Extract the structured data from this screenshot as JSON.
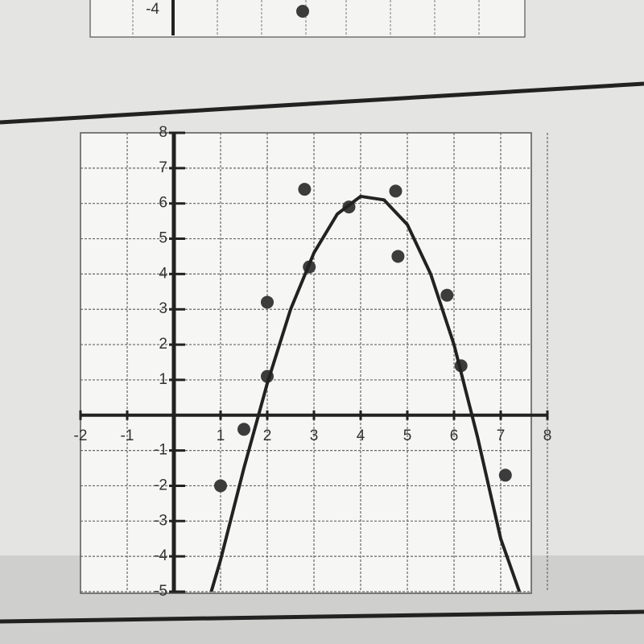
{
  "chart_data": {
    "type": "scatter",
    "xlim": [
      -2,
      8
    ],
    "ylim": [
      -5,
      8
    ],
    "xticks": [
      -2,
      -1,
      1,
      2,
      3,
      4,
      5,
      6,
      7,
      8
    ],
    "yticks": [
      -5,
      -4,
      -3,
      -2,
      -1,
      1,
      2,
      3,
      4,
      5,
      6,
      7,
      8
    ],
    "grid": true,
    "series": [
      {
        "type": "scatter",
        "color": "#3c3c3c",
        "x": [
          1,
          1.5,
          2,
          2,
          2.8,
          2.9,
          3.75,
          4.75,
          4.8,
          5.85,
          6.15,
          7.1
        ],
        "values": [
          -2,
          -0.4,
          3.2,
          1.1,
          6.4,
          4.2,
          5.9,
          6.35,
          4.5,
          3.4,
          1.4,
          -1.7
        ]
      },
      {
        "type": "line",
        "color": "#222222",
        "x": [
          0.8,
          1,
          1.5,
          2,
          2.5,
          3,
          3.5,
          4,
          4.5,
          5,
          5.5,
          6,
          6.5,
          7,
          7.4
        ],
        "values": [
          -5,
          -4.1,
          -1.5,
          0.9,
          3.0,
          4.6,
          5.7,
          6.2,
          6.1,
          5.4,
          4.0,
          2.0,
          -0.6,
          -3.5,
          -5
        ]
      }
    ]
  },
  "top_fragment": {
    "tick_label": "-4"
  }
}
